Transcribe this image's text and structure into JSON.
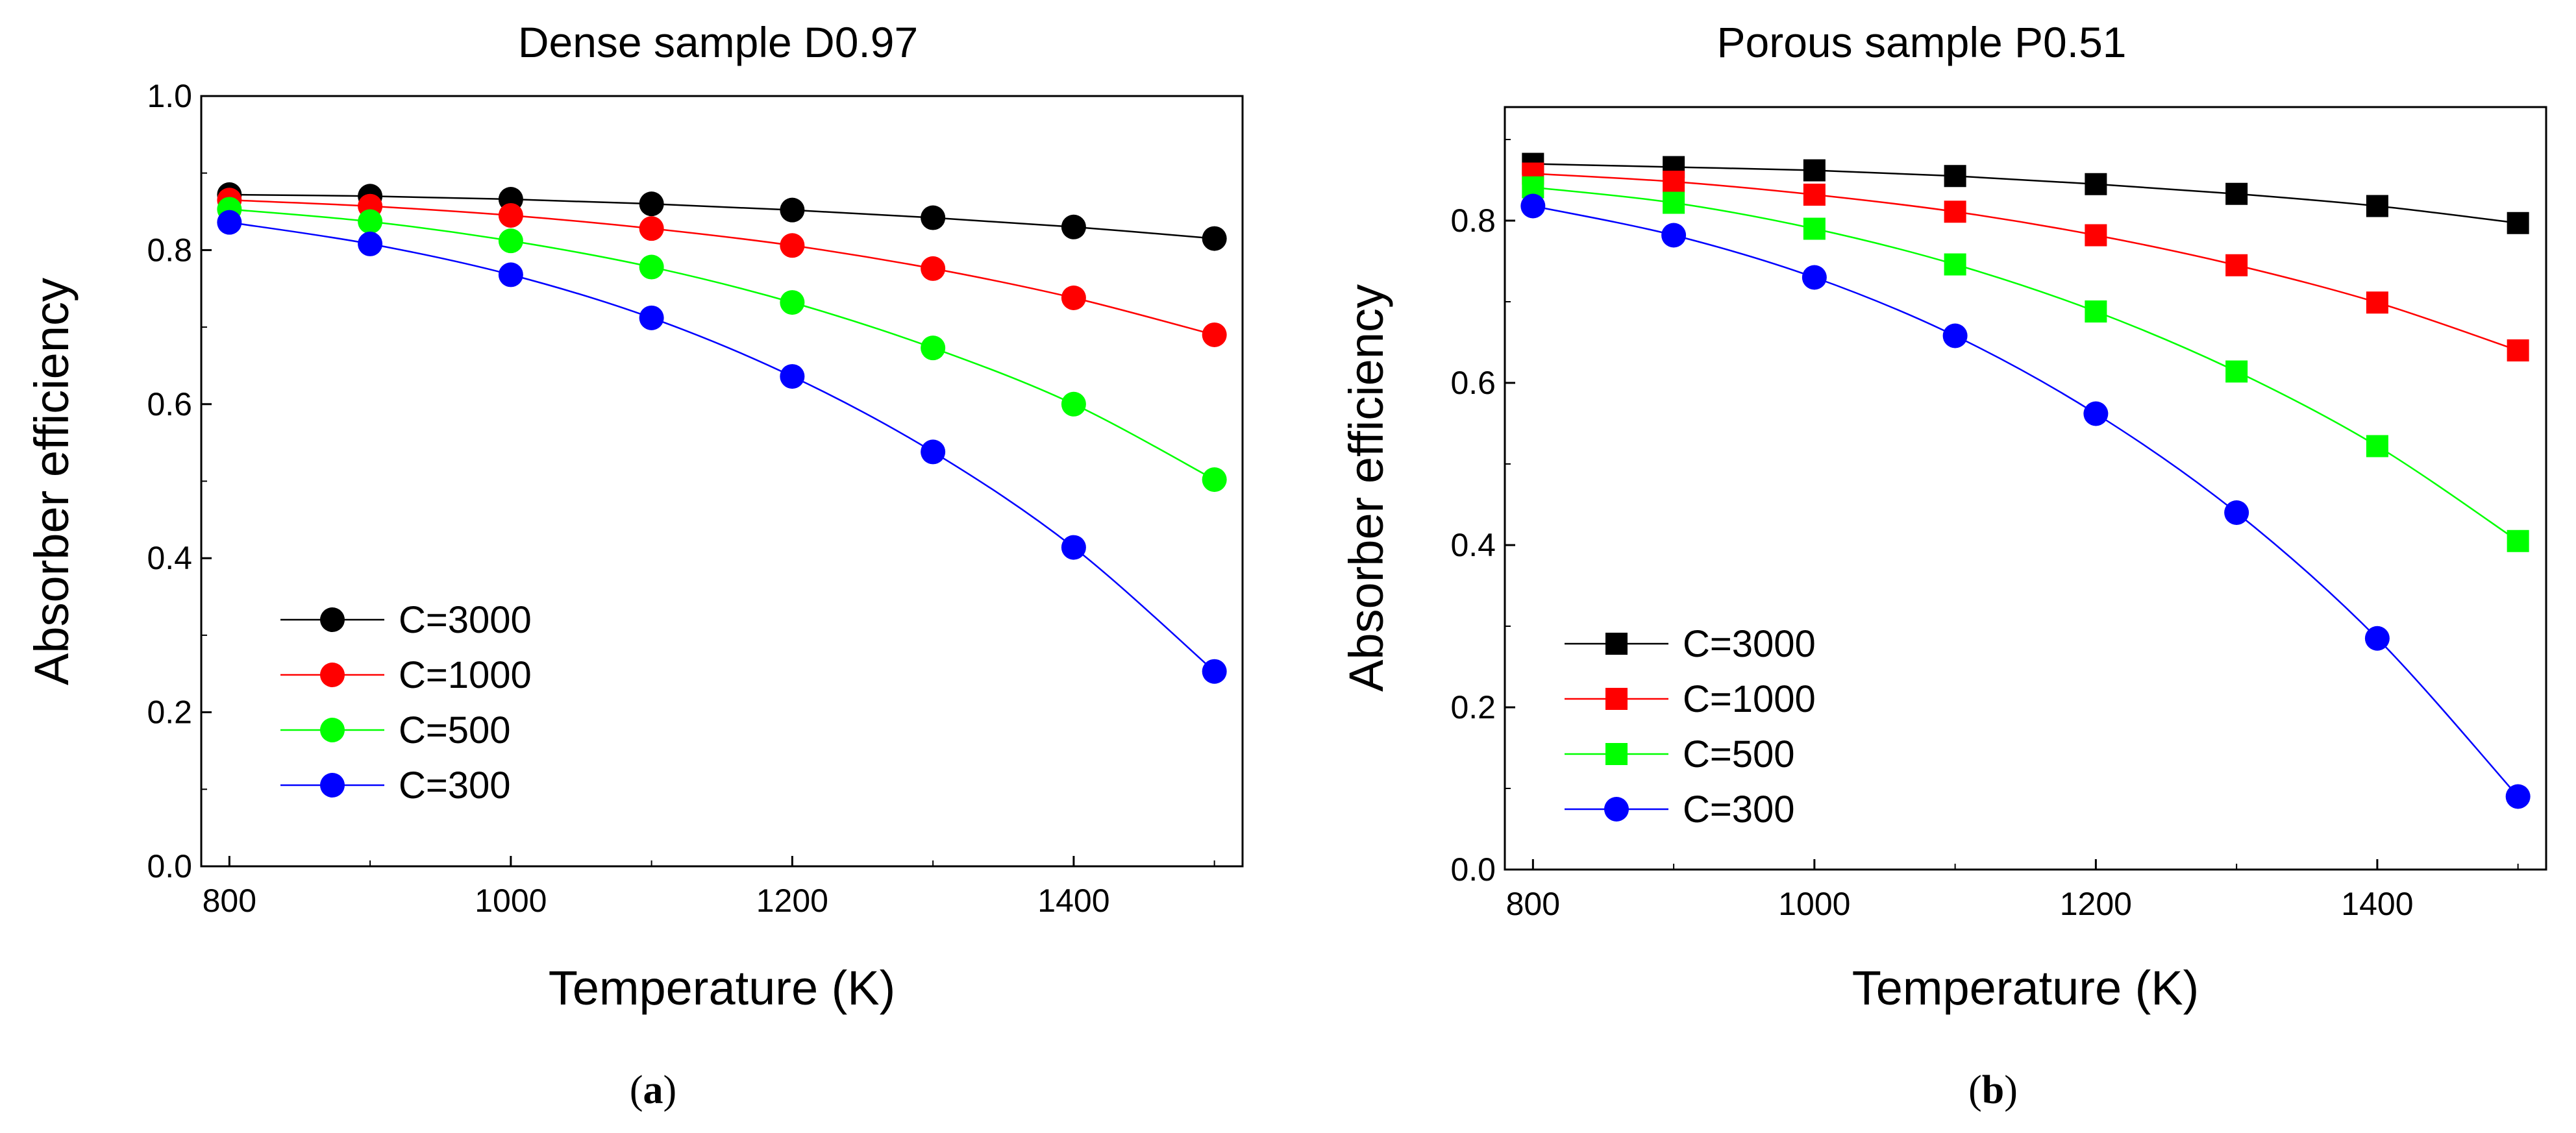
{
  "colors": {
    "C=3000": "#000000",
    "C=1000": "#ff0000",
    "C=500": "#00ff00",
    "C=300": "#0000ff"
  },
  "chart_data": [
    {
      "type": "line",
      "title": "Dense sample D0.97",
      "xlabel": "Temperature (K)",
      "ylabel": "Absorber efficiency",
      "caption": "a",
      "xlim": [
        780,
        1520
      ],
      "ylim": [
        0.0,
        1.0
      ],
      "xticks": [
        800,
        1000,
        1200,
        1400
      ],
      "yticks": [
        "0.0",
        "0.2",
        "0.4",
        "0.6",
        "0.8",
        "1.0"
      ],
      "x": [
        800,
        900,
        1000,
        1100,
        1200,
        1300,
        1400,
        1500
      ],
      "marker": "circle",
      "legend_position": "lower-left",
      "series": [
        {
          "name": "C=3000",
          "values": [
            0.872,
            0.87,
            0.866,
            0.86,
            0.852,
            0.842,
            0.83,
            0.815
          ]
        },
        {
          "name": "C=1000",
          "values": [
            0.865,
            0.857,
            0.845,
            0.828,
            0.806,
            0.776,
            0.738,
            0.69
          ]
        },
        {
          "name": "C=500",
          "values": [
            0.853,
            0.837,
            0.812,
            0.778,
            0.732,
            0.673,
            0.6,
            0.502
          ]
        },
        {
          "name": "C=300",
          "values": [
            0.836,
            0.808,
            0.768,
            0.712,
            0.636,
            0.538,
            0.414,
            0.253
          ]
        }
      ]
    },
    {
      "type": "line",
      "title": "Porous sample P0.51",
      "xlabel": "Temperature (K)",
      "ylabel": "Absorber efficiency",
      "caption": "b",
      "xlim": [
        780,
        1520
      ],
      "ylim": [
        0.0,
        0.94
      ],
      "xticks": [
        800,
        1000,
        1200,
        1400
      ],
      "yticks": [
        "0.0",
        "0.2",
        "0.4",
        "0.6",
        "0.8"
      ],
      "x": [
        800,
        900,
        1000,
        1100,
        1200,
        1300,
        1400,
        1500
      ],
      "legend_position": "lower-left",
      "series": [
        {
          "name": "C=3000",
          "marker": "square",
          "values": [
            0.87,
            0.866,
            0.862,
            0.855,
            0.845,
            0.833,
            0.818,
            0.797
          ]
        },
        {
          "name": "C=1000",
          "marker": "square",
          "values": [
            0.858,
            0.848,
            0.832,
            0.811,
            0.782,
            0.745,
            0.699,
            0.64
          ]
        },
        {
          "name": "C=500",
          "marker": "square",
          "values": [
            0.841,
            0.822,
            0.79,
            0.746,
            0.688,
            0.614,
            0.522,
            0.405
          ]
        },
        {
          "name": "C=300",
          "marker": "circle",
          "values": [
            0.818,
            0.782,
            0.73,
            0.658,
            0.562,
            0.44,
            0.285,
            0.09
          ]
        }
      ]
    }
  ]
}
